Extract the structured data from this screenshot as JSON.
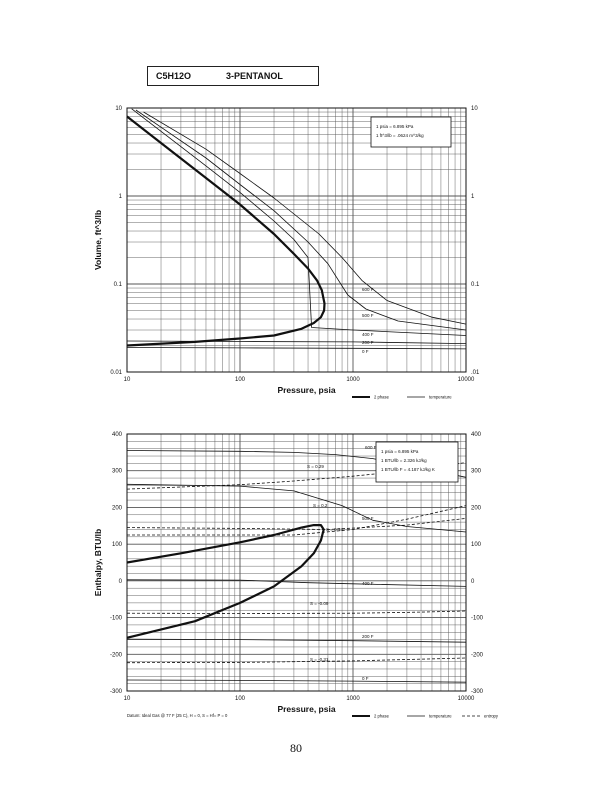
{
  "header": {
    "formula": "C5H12O",
    "name": "3-PENTANOL"
  },
  "page_number": "80",
  "colors": {
    "ink": "#111111",
    "grid": "#555555",
    "paper": "#ffffff"
  },
  "chart_data": [
    {
      "type": "line",
      "xscale": "log",
      "yscale": "log",
      "xlim": [
        10,
        10000
      ],
      "ylim": [
        0.01,
        10
      ],
      "xticks": [
        "10",
        "100",
        "1000",
        "10000"
      ],
      "yticks_left": [
        "0.01",
        "0.1",
        "1",
        "10"
      ],
      "yticks_right": [
        ".01",
        "0.1",
        "1",
        "10"
      ],
      "xlabel": "Pressure,  psia",
      "ylabel": "Volume, ft^3/lb",
      "conversion_notes": [
        "1 psia  =  6.895 kPa",
        "1 ft^3/lb  =  .0624 m^3/kg"
      ],
      "legend": [
        {
          "label": "2 phase",
          "style": "thick"
        },
        {
          "label": "temperature",
          "style": "thin"
        }
      ],
      "annotations": [
        "600 F",
        "500 F",
        "400 F",
        "200 F",
        "0 F"
      ],
      "series": [
        {
          "name": "2 phase",
          "style": "thick",
          "x": [
            10,
            20,
            50,
            100,
            200,
            300,
            400,
            480,
            530,
            560,
            555,
            520,
            450,
            350,
            200,
            100,
            40,
            10
          ],
          "y": [
            8.0,
            4.0,
            1.6,
            0.8,
            0.37,
            0.22,
            0.15,
            0.11,
            0.085,
            0.06,
            0.05,
            0.042,
            0.036,
            0.031,
            0.026,
            0.024,
            0.022,
            0.02
          ]
        },
        {
          "name": "600 F",
          "style": "thin",
          "x": [
            14,
            50,
            100,
            200,
            500,
            800,
            1200,
            2000,
            5000,
            10000
          ],
          "y": [
            9.0,
            3.4,
            1.8,
            0.95,
            0.37,
            0.2,
            0.11,
            0.065,
            0.042,
            0.035
          ]
        },
        {
          "name": "500 F",
          "style": "thin",
          "x": [
            12,
            50,
            100,
            200,
            400,
            600,
            900,
            1300,
            2500,
            10000
          ],
          "y": [
            9.5,
            2.7,
            1.35,
            0.68,
            0.3,
            0.17,
            0.075,
            0.052,
            0.038,
            0.03
          ]
        },
        {
          "name": "400 F",
          "style": "thin",
          "x": [
            11,
            50,
            100,
            200,
            300,
            400,
            430,
            1000,
            10000
          ],
          "y": [
            9.8,
            2.2,
            1.1,
            0.52,
            0.32,
            0.2,
            0.032,
            0.03,
            0.026
          ]
        },
        {
          "name": "200 F",
          "style": "thin",
          "x": [
            10,
            100,
            1000,
            10000
          ],
          "y": [
            0.0225,
            0.0222,
            0.022,
            0.021
          ]
        },
        {
          "name": "0 F",
          "style": "thin",
          "x": [
            10,
            100,
            1000,
            10000
          ],
          "y": [
            0.019,
            0.0188,
            0.0186,
            0.0183
          ]
        }
      ]
    },
    {
      "type": "line",
      "xscale": "log",
      "yscale": "linear",
      "xlim": [
        10,
        10000
      ],
      "ylim": [
        -300,
        400
      ],
      "xticks": [
        "10",
        "100",
        "1000",
        "10000"
      ],
      "yticks_left": [
        "-300",
        "-200",
        "-100",
        "0",
        "100",
        "200",
        "300",
        "400"
      ],
      "yticks_right": [
        "-300",
        "-200",
        "-100",
        "0",
        "100",
        "200",
        "300",
        "400"
      ],
      "xlabel": "Pressure,  psia",
      "ylabel": "Enthalpy,  BTU/lb",
      "conversion_notes": [
        "1 psia  =  6.895 kPa",
        "1 BTU/lb  =  2.326 kJ/kg",
        "1 BTU/lb F  =  4.187 kJ/kg K"
      ],
      "datum_note": "Datum: Ideal Gas @ 77 F (25 C),  H = 0,  S = Hf= P = 0",
      "legend": [
        {
          "label": "2 phase",
          "style": "thick"
        },
        {
          "label": "temperature",
          "style": "thin"
        },
        {
          "label": "entropy",
          "style": "dashed"
        }
      ],
      "annotations": [
        "600 F",
        "500 F",
        "400 F",
        "200 F",
        "0 F",
        "S = 0.29",
        "S = 0.2",
        "S = 0.13",
        "S = -0.09",
        "S = -0.31"
      ],
      "series": [
        {
          "name": "2 phase",
          "style": "thick",
          "x": [
            10,
            30,
            100,
            200,
            350,
            450,
            520,
            550,
            520,
            450,
            350,
            200,
            100,
            40,
            10
          ],
          "y": [
            50,
            75,
            105,
            125,
            145,
            152,
            152,
            140,
            110,
            75,
            40,
            -15,
            -60,
            -110,
            -155
          ]
        },
        {
          "name": "600 F",
          "style": "thin",
          "x": [
            10,
            100,
            300,
            700,
            1500,
            3000,
            10000
          ],
          "y": [
            355,
            353,
            350,
            344,
            333,
            315,
            282
          ]
        },
        {
          "name": "500 F",
          "style": "thin",
          "x": [
            10,
            100,
            300,
            800,
            1500,
            3000,
            10000
          ],
          "y": [
            263,
            258,
            245,
            205,
            165,
            148,
            133
          ]
        },
        {
          "name": "400 F",
          "style": "thin",
          "x": [
            10,
            100,
            400,
            1000,
            10000
          ],
          "y": [
            3,
            2,
            -5,
            -8,
            -15
          ]
        },
        {
          "name": "200 F",
          "style": "thin",
          "x": [
            10,
            100,
            1000,
            10000
          ],
          "y": [
            -159,
            -160,
            -163,
            -167
          ]
        },
        {
          "name": "0 F",
          "style": "thin",
          "x": [
            10,
            100,
            1000,
            10000
          ],
          "y": [
            -270,
            -271,
            -273,
            -276
          ]
        },
        {
          "name": "S = 0.29",
          "style": "dashed",
          "x": [
            10,
            100,
            300,
            1000,
            3000,
            10000
          ],
          "y": [
            250,
            262,
            272,
            285,
            300,
            322
          ]
        },
        {
          "name": "S = 0.2",
          "style": "dashed",
          "x": [
            10,
            100,
            300,
            1000,
            3000,
            10000
          ],
          "y": [
            125,
            125,
            125,
            140,
            168,
            205
          ]
        },
        {
          "name": "S = 0.13",
          "style": "dashed",
          "x": [
            10,
            100,
            600,
            3000,
            10000
          ],
          "y": [
            145,
            143,
            140,
            152,
            170
          ]
        },
        {
          "name": "S = -0.09",
          "style": "dashed",
          "x": [
            10,
            100,
            1000,
            3000,
            10000
          ],
          "y": [
            -88,
            -89,
            -88,
            -86,
            -82
          ]
        },
        {
          "name": "S = -0.31",
          "style": "dashed",
          "x": [
            10,
            100,
            1000,
            10000
          ],
          "y": [
            -223,
            -222,
            -218,
            -210
          ]
        }
      ]
    }
  ]
}
